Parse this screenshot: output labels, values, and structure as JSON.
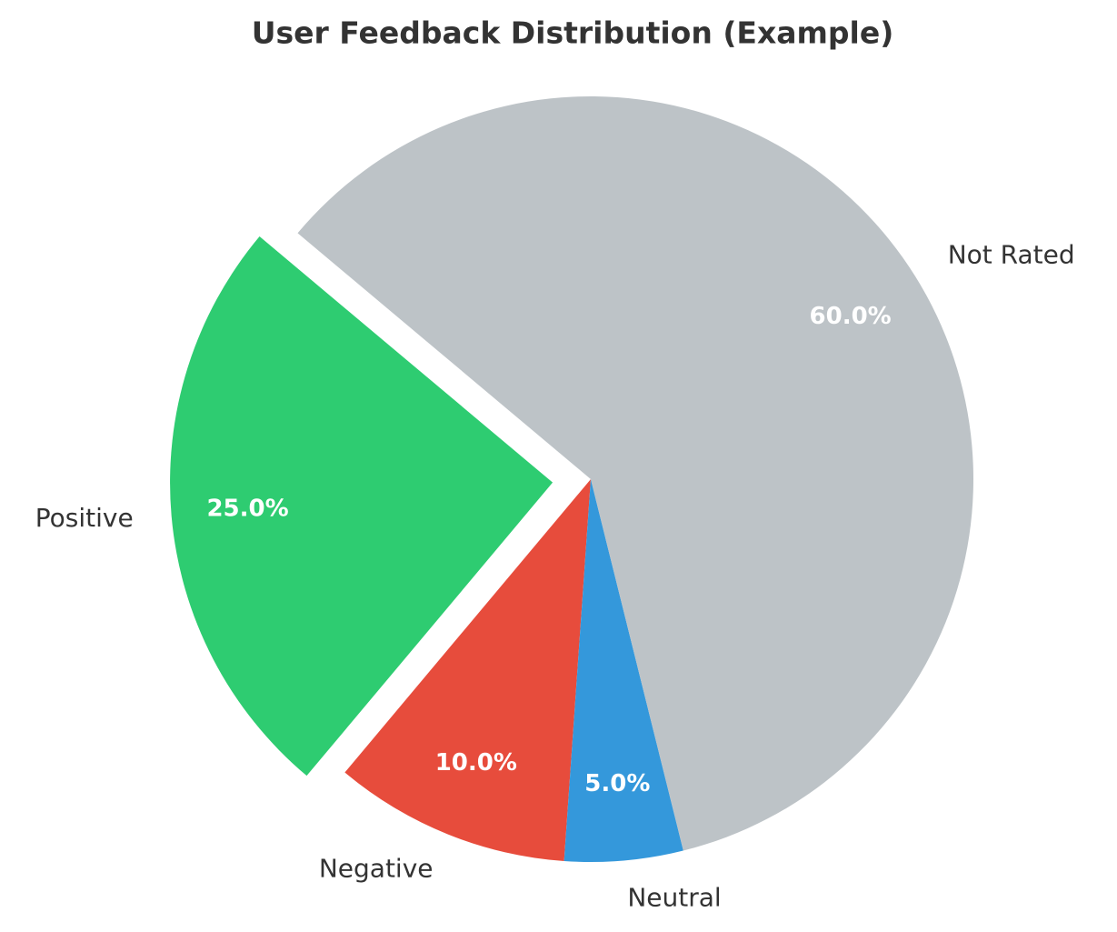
{
  "chart_data": {
    "type": "pie",
    "title": "User Feedback Distribution (Example)",
    "categories": [
      "Positive",
      "Negative",
      "Neutral",
      "Not Rated"
    ],
    "values": [
      25,
      10,
      5,
      60
    ],
    "value_labels": [
      "25.0%",
      "10.0%",
      "5.0%",
      "60.0%"
    ],
    "colors": [
      "#2ecc71",
      "#e74c3c",
      "#3498db",
      "#bdc3c7"
    ]
  }
}
